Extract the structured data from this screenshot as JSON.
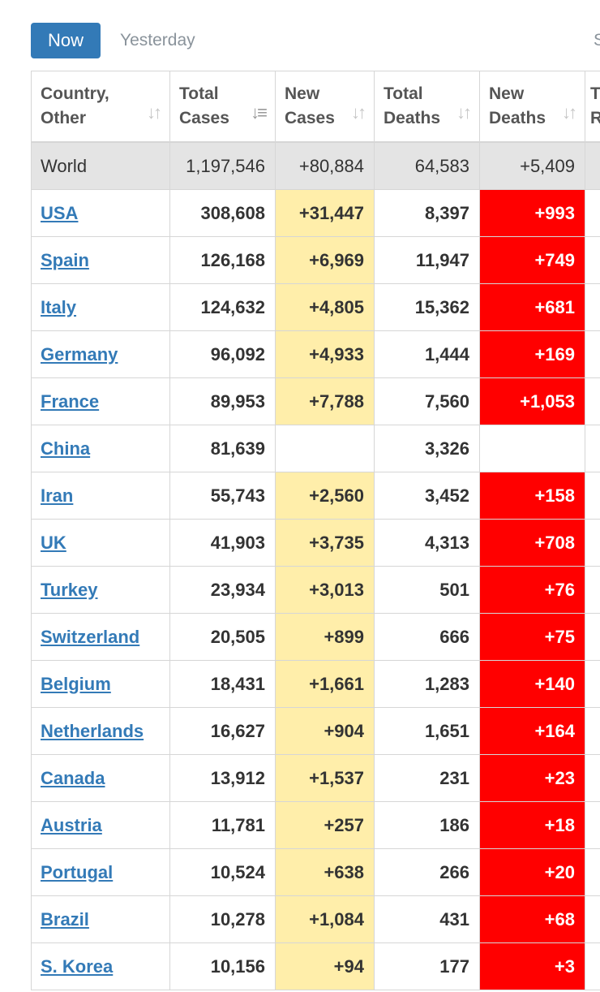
{
  "tabs": {
    "now_label": "Now",
    "yesterday_label": "Yesterday",
    "cut_label": "S"
  },
  "table": {
    "headers": [
      {
        "line1": "Country,",
        "line2": "Other"
      },
      {
        "line1": "Total",
        "line2": "Cases"
      },
      {
        "line1": "New",
        "line2": "Cases"
      },
      {
        "line1": "Total",
        "line2": "Deaths"
      },
      {
        "line1": "New",
        "line2": "Deaths"
      },
      {
        "line1": "T",
        "line2": "R"
      }
    ],
    "sort_icon": "sort-arrows-icon",
    "world": {
      "name": "World",
      "total_cases": "1,197,546",
      "new_cases": "+80,884",
      "total_deaths": "64,583",
      "new_deaths": "+5,409"
    },
    "rows": [
      {
        "name": "USA",
        "total_cases": "308,608",
        "new_cases": "+31,447",
        "total_deaths": "8,397",
        "new_deaths": "+993"
      },
      {
        "name": "Spain",
        "total_cases": "126,168",
        "new_cases": "+6,969",
        "total_deaths": "11,947",
        "new_deaths": "+749"
      },
      {
        "name": "Italy",
        "total_cases": "124,632",
        "new_cases": "+4,805",
        "total_deaths": "15,362",
        "new_deaths": "+681"
      },
      {
        "name": "Germany",
        "total_cases": "96,092",
        "new_cases": "+4,933",
        "total_deaths": "1,444",
        "new_deaths": "+169"
      },
      {
        "name": "France",
        "total_cases": "89,953",
        "new_cases": "+7,788",
        "total_deaths": "7,560",
        "new_deaths": "+1,053"
      },
      {
        "name": "China",
        "total_cases": "81,639",
        "new_cases": "",
        "total_deaths": "3,326",
        "new_deaths": ""
      },
      {
        "name": "Iran",
        "total_cases": "55,743",
        "new_cases": "+2,560",
        "total_deaths": "3,452",
        "new_deaths": "+158"
      },
      {
        "name": "UK",
        "total_cases": "41,903",
        "new_cases": "+3,735",
        "total_deaths": "4,313",
        "new_deaths": "+708"
      },
      {
        "name": "Turkey",
        "total_cases": "23,934",
        "new_cases": "+3,013",
        "total_deaths": "501",
        "new_deaths": "+76"
      },
      {
        "name": "Switzerland",
        "total_cases": "20,505",
        "new_cases": "+899",
        "total_deaths": "666",
        "new_deaths": "+75"
      },
      {
        "name": "Belgium",
        "total_cases": "18,431",
        "new_cases": "+1,661",
        "total_deaths": "1,283",
        "new_deaths": "+140"
      },
      {
        "name": "Netherlands",
        "total_cases": "16,627",
        "new_cases": "+904",
        "total_deaths": "1,651",
        "new_deaths": "+164"
      },
      {
        "name": "Canada",
        "total_cases": "13,912",
        "new_cases": "+1,537",
        "total_deaths": "231",
        "new_deaths": "+23"
      },
      {
        "name": "Austria",
        "total_cases": "11,781",
        "new_cases": "+257",
        "total_deaths": "186",
        "new_deaths": "+18"
      },
      {
        "name": "Portugal",
        "total_cases": "10,524",
        "new_cases": "+638",
        "total_deaths": "266",
        "new_deaths": "+20"
      },
      {
        "name": "Brazil",
        "total_cases": "10,278",
        "new_cases": "+1,084",
        "total_deaths": "431",
        "new_deaths": "+68"
      },
      {
        "name": "S. Korea",
        "total_cases": "10,156",
        "new_cases": "+94",
        "total_deaths": "177",
        "new_deaths": "+3"
      }
    ]
  },
  "colors": {
    "accent": "#337ab7",
    "new_cases_bg": "#ffeeaa",
    "new_deaths_bg": "#ff0000",
    "world_row_bg": "#e4e4e4",
    "border": "#d6d6d6"
  }
}
